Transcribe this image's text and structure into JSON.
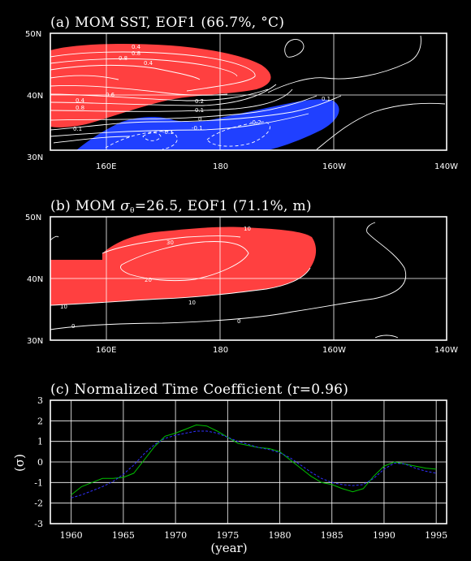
{
  "panels": [
    {
      "title": "(a) MOM SST, EOF1 (66.7%, °C)",
      "lon_ticks": [
        "160E",
        "180",
        "160W",
        "140W"
      ],
      "lat_ticks": [
        "50N",
        "40N",
        "30N"
      ],
      "contour_labels": [
        "0.4",
        "0.8",
        "0.8",
        "0.4",
        "0.4",
        "0.8",
        "0.6",
        "0.2",
        "0.1",
        "0.1",
        "0.1",
        "0",
        "-0.1",
        "-0.2",
        "-0.1"
      ],
      "fill_colors": {
        "positive": "#ff4040",
        "negative": "#2040ff"
      }
    },
    {
      "title_prefix": "(b) MOM ",
      "title_sigma": "σ",
      "title_sub": "θ",
      "title_rest": "=26.5, EOF1 (71.1%, m)",
      "lon_ticks": [
        "160E",
        "180",
        "160W",
        "140W"
      ],
      "lat_ticks": [
        "50N",
        "40N",
        "30N"
      ],
      "contour_labels": [
        "30",
        "10",
        "20",
        "10",
        "10",
        "0",
        "0"
      ],
      "fill_colors": {
        "positive": "#ff4040"
      }
    }
  ],
  "chart_data": {
    "type": "line",
    "title": "(c) Normalized Time Coefficient (r=0.96)",
    "xlabel": "(year)",
    "ylabel": "(σ)",
    "xlim": [
      1958,
      1996
    ],
    "ylim": [
      -3,
      3
    ],
    "x_ticks": [
      "1960",
      "1965",
      "1970",
      "1975",
      "1980",
      "1985",
      "1990",
      "1995"
    ],
    "y_ticks": [
      "3",
      "2",
      "1",
      "0",
      "-1",
      "-2",
      "-3"
    ],
    "grid": true,
    "series": [
      {
        "color": "#00c000",
        "x": [
          1960,
          1961,
          1962,
          1963,
          1964,
          1965,
          1966,
          1967,
          1968,
          1969,
          1970,
          1971,
          1972,
          1973,
          1974,
          1975,
          1976,
          1977,
          1978,
          1979,
          1980,
          1981,
          1982,
          1983,
          1984,
          1985,
          1986,
          1987,
          1988,
          1989,
          1990,
          1991,
          1992,
          1993,
          1994,
          1995
        ],
        "y": [
          -1.6,
          -1.2,
          -1.0,
          -0.8,
          -0.8,
          -0.75,
          -0.55,
          0.1,
          0.75,
          1.25,
          1.4,
          1.6,
          1.8,
          1.75,
          1.5,
          1.2,
          0.9,
          0.8,
          0.7,
          0.65,
          0.5,
          0.1,
          -0.3,
          -0.7,
          -1.0,
          -1.1,
          -1.3,
          -1.45,
          -1.3,
          -0.7,
          -0.2,
          0.0,
          -0.1,
          -0.2,
          -0.3,
          -0.35
        ]
      },
      {
        "color": "#3030ff",
        "x": [
          1960,
          1961,
          1962,
          1963,
          1964,
          1965,
          1966,
          1967,
          1968,
          1969,
          1970,
          1971,
          1972,
          1973,
          1974,
          1975,
          1976,
          1977,
          1978,
          1979,
          1980,
          1981,
          1982,
          1983,
          1984,
          1985,
          1986,
          1987,
          1988,
          1989,
          1990,
          1991,
          1992,
          1993,
          1994,
          1995
        ],
        "y": [
          -1.75,
          -1.6,
          -1.4,
          -1.2,
          -0.95,
          -0.6,
          -0.15,
          0.4,
          0.85,
          1.15,
          1.3,
          1.4,
          1.5,
          1.5,
          1.4,
          1.2,
          1.0,
          0.85,
          0.7,
          0.6,
          0.45,
          0.2,
          -0.15,
          -0.5,
          -0.8,
          -1.0,
          -1.1,
          -1.15,
          -1.1,
          -0.8,
          -0.35,
          -0.05,
          -0.1,
          -0.3,
          -0.45,
          -0.55
        ]
      }
    ]
  }
}
